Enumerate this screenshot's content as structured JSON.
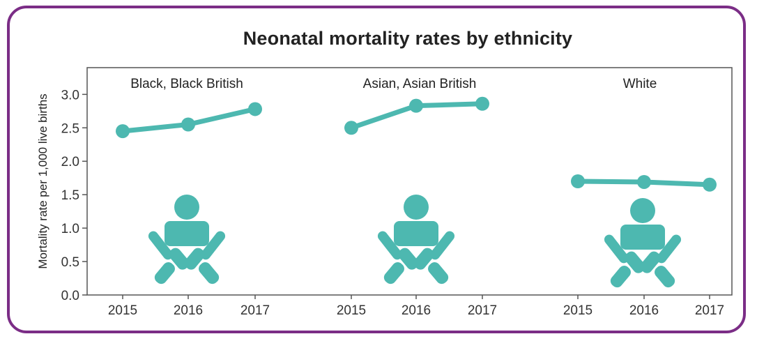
{
  "chart_data": {
    "type": "line",
    "title": "Neonatal mortality rates by ethnicity",
    "ylabel": "Mortality rate per 1,000 live births",
    "ylim": [
      0,
      3.4
    ],
    "yticks": [
      "0.0",
      "0.5",
      "1.0",
      "1.5",
      "2.0",
      "2.5",
      "3.0"
    ],
    "x": [
      "2015",
      "2016",
      "2017"
    ],
    "series": [
      {
        "name": "Black, Black British",
        "values": [
          2.45,
          2.55,
          2.78
        ]
      },
      {
        "name": "Asian, Asian British",
        "values": [
          2.5,
          2.83,
          2.86
        ]
      },
      {
        "name": "White",
        "values": [
          1.7,
          1.69,
          1.65
        ]
      }
    ],
    "grid": false,
    "line_color": "#4db8b0",
    "icon": "baby-icon",
    "frame_color": "#7b2d86"
  }
}
